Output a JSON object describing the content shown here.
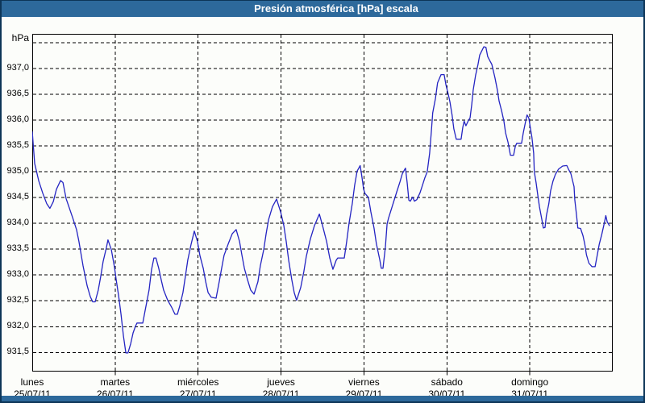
{
  "window": {
    "title": "Presión atmosférica [hPa] escala"
  },
  "colors": {
    "titlebar": "#2d699b",
    "frame_border": "#0d3557",
    "background": "#fcfdfa",
    "grid": "#000000",
    "axis": "#000000",
    "line": "#2424c2",
    "label_text": "#000000",
    "title_text": "#ffffff"
  },
  "chart_data": {
    "type": "line",
    "title": "Presión atmosférica [hPa] escala",
    "unit_label": "hPa",
    "grid": "dashed",
    "legend": "none",
    "y_axis": {
      "min_visible": 931.13,
      "max_visible": 937.67,
      "gridlines": [
        937.5,
        937.0,
        936.5,
        936.0,
        935.5,
        935.0,
        934.5,
        934.0,
        933.5,
        933.0,
        932.5,
        932.0,
        931.5
      ],
      "ticks": [
        {
          "value": 937.0,
          "label": "937,0"
        },
        {
          "value": 936.5,
          "label": "936,5"
        },
        {
          "value": 936.0,
          "label": "936,0"
        },
        {
          "value": 935.5,
          "label": "935,5"
        },
        {
          "value": 935.0,
          "label": "935,0"
        },
        {
          "value": 934.5,
          "label": "934,5"
        },
        {
          "value": 934.0,
          "label": "934,0"
        },
        {
          "value": 933.5,
          "label": "933,5"
        },
        {
          "value": 933.0,
          "label": "933,0"
        },
        {
          "value": 932.5,
          "label": "932,5"
        },
        {
          "value": 932.0,
          "label": "932,0"
        },
        {
          "value": 931.5,
          "label": "931,5"
        }
      ]
    },
    "x_axis": {
      "hours_total": 168,
      "gridline_hours": [
        24,
        48,
        72,
        96,
        120,
        144
      ],
      "days": [
        {
          "name": "lunes",
          "date": "25/07/11"
        },
        {
          "name": "martes",
          "date": "26/07/11"
        },
        {
          "name": "miércoles",
          "date": "27/07/11"
        },
        {
          "name": "jueves",
          "date": "28/07/11"
        },
        {
          "name": "viernes",
          "date": "29/07/11"
        },
        {
          "name": "sábado",
          "date": "30/07/11"
        },
        {
          "name": "domingo",
          "date": "31/07/11"
        }
      ]
    },
    "series": [
      {
        "name": "Presión atmosférica [hPa]",
        "color": "#2424c2",
        "points": [
          [
            0,
            935.78
          ],
          [
            0.7,
            935.16
          ],
          [
            1.9,
            934.82
          ],
          [
            3,
            934.59
          ],
          [
            4.2,
            934.38
          ],
          [
            5.1,
            934.29
          ],
          [
            6.1,
            934.42
          ],
          [
            7,
            934.66
          ],
          [
            8.2,
            934.83
          ],
          [
            8.9,
            934.79
          ],
          [
            9.8,
            934.48
          ],
          [
            11.7,
            934.11
          ],
          [
            12.8,
            933.88
          ],
          [
            13.5,
            933.65
          ],
          [
            14.7,
            933.18
          ],
          [
            15.9,
            932.79
          ],
          [
            16.8,
            932.58
          ],
          [
            17.5,
            932.48
          ],
          [
            18.2,
            932.48
          ],
          [
            19.1,
            932.71
          ],
          [
            19.8,
            932.97
          ],
          [
            20.5,
            933.26
          ],
          [
            21.5,
            933.54
          ],
          [
            21.9,
            933.68
          ],
          [
            22.9,
            933.49
          ],
          [
            23.8,
            933.15
          ],
          [
            24.3,
            932.91
          ],
          [
            25,
            932.6
          ],
          [
            25.7,
            932.24
          ],
          [
            26.4,
            931.82
          ],
          [
            27.1,
            931.49
          ],
          [
            27.7,
            931.49
          ],
          [
            28.5,
            931.67
          ],
          [
            29.2,
            931.88
          ],
          [
            29.9,
            932.01
          ],
          [
            30.3,
            932.07
          ],
          [
            32,
            932.07
          ],
          [
            32.7,
            932.32
          ],
          [
            33.8,
            932.71
          ],
          [
            34.5,
            933.1
          ],
          [
            35.2,
            933.33
          ],
          [
            35.8,
            933.33
          ],
          [
            36.6,
            933.13
          ],
          [
            37.3,
            932.91
          ],
          [
            38,
            932.71
          ],
          [
            39.2,
            932.51
          ],
          [
            40.4,
            932.37
          ],
          [
            41.3,
            932.24
          ],
          [
            42,
            932.24
          ],
          [
            42.7,
            932.4
          ],
          [
            43.6,
            932.66
          ],
          [
            44.3,
            932.97
          ],
          [
            45,
            933.29
          ],
          [
            46,
            933.6
          ],
          [
            46.9,
            933.85
          ],
          [
            47.8,
            933.65
          ],
          [
            48.5,
            933.38
          ],
          [
            49.5,
            933.13
          ],
          [
            50.2,
            932.87
          ],
          [
            50.9,
            932.66
          ],
          [
            51.8,
            932.57
          ],
          [
            53.2,
            932.55
          ],
          [
            54.1,
            932.87
          ],
          [
            54.8,
            933.13
          ],
          [
            55.5,
            933.38
          ],
          [
            56.7,
            933.6
          ],
          [
            57.9,
            933.8
          ],
          [
            59,
            933.88
          ],
          [
            60,
            933.65
          ],
          [
            60.7,
            933.38
          ],
          [
            61.4,
            933.13
          ],
          [
            62.3,
            932.91
          ],
          [
            63.2,
            932.71
          ],
          [
            64.2,
            932.63
          ],
          [
            65.3,
            932.87
          ],
          [
            66,
            933.18
          ],
          [
            67,
            933.49
          ],
          [
            67.7,
            933.8
          ],
          [
            68.4,
            934.07
          ],
          [
            69.5,
            934.32
          ],
          [
            70.7,
            934.47
          ],
          [
            71.9,
            934.22
          ],
          [
            72.8,
            933.96
          ],
          [
            73.5,
            933.65
          ],
          [
            74.2,
            933.29
          ],
          [
            75.1,
            932.91
          ],
          [
            75.8,
            932.66
          ],
          [
            76.5,
            932.51
          ],
          [
            77.7,
            932.76
          ],
          [
            78.6,
            933.07
          ],
          [
            79.3,
            933.36
          ],
          [
            80.5,
            933.7
          ],
          [
            81.7,
            933.96
          ],
          [
            83.1,
            934.18
          ],
          [
            84,
            933.96
          ],
          [
            85.2,
            933.65
          ],
          [
            86.1,
            933.33
          ],
          [
            87,
            933.11
          ],
          [
            88,
            933.29
          ],
          [
            88.4,
            933.33
          ],
          [
            90.3,
            933.33
          ],
          [
            91,
            933.65
          ],
          [
            91.7,
            934.01
          ],
          [
            92.6,
            934.38
          ],
          [
            93.3,
            934.74
          ],
          [
            94,
            935.01
          ],
          [
            94.9,
            935.12
          ],
          [
            95.4,
            934.9
          ],
          [
            95.9,
            934.66
          ],
          [
            96.3,
            934.58
          ],
          [
            97.3,
            934.5
          ],
          [
            98,
            934.22
          ],
          [
            98.9,
            933.91
          ],
          [
            99.6,
            933.6
          ],
          [
            100.6,
            933.29
          ],
          [
            101,
            933.13
          ],
          [
            101.5,
            933.13
          ],
          [
            102.2,
            933.54
          ],
          [
            102.7,
            933.99
          ],
          [
            103.1,
            934.1
          ],
          [
            104.5,
            934.4
          ],
          [
            105.5,
            934.61
          ],
          [
            106.4,
            934.8
          ],
          [
            107.1,
            934.96
          ],
          [
            108,
            935.07
          ],
          [
            108.5,
            934.79
          ],
          [
            109,
            934.45
          ],
          [
            109.4,
            934.43
          ],
          [
            110.1,
            934.51
          ],
          [
            110.6,
            934.43
          ],
          [
            111.3,
            934.46
          ],
          [
            112.2,
            934.59
          ],
          [
            112.7,
            934.69
          ],
          [
            113.6,
            934.88
          ],
          [
            114.3,
            935
          ],
          [
            115,
            935.36
          ],
          [
            115.5,
            935.78
          ],
          [
            115.9,
            936.14
          ],
          [
            116.7,
            936.42
          ],
          [
            117.3,
            936.72
          ],
          [
            118.3,
            936.88
          ],
          [
            119.2,
            936.88
          ],
          [
            119.7,
            936.69
          ],
          [
            120.4,
            936.5
          ],
          [
            120.9,
            936.35
          ],
          [
            121.5,
            936.1
          ],
          [
            122,
            935.83
          ],
          [
            122.7,
            935.63
          ],
          [
            124.1,
            935.63
          ],
          [
            124.6,
            935.86
          ],
          [
            125,
            935.98
          ],
          [
            125.5,
            935.89
          ],
          [
            126.2,
            935.99
          ],
          [
            126.7,
            936.04
          ],
          [
            127.2,
            936.3
          ],
          [
            127.6,
            936.58
          ],
          [
            128.3,
            936.87
          ],
          [
            129,
            937.08
          ],
          [
            129.5,
            937.26
          ],
          [
            130.7,
            937.42
          ],
          [
            131.3,
            937.41
          ],
          [
            131.8,
            937.23
          ],
          [
            132.5,
            937.14
          ],
          [
            133,
            937.08
          ],
          [
            133.9,
            936.82
          ],
          [
            134.6,
            936.58
          ],
          [
            135.1,
            936.37
          ],
          [
            135.8,
            936.19
          ],
          [
            136.5,
            935.98
          ],
          [
            137,
            935.75
          ],
          [
            137.7,
            935.57
          ],
          [
            138.4,
            935.32
          ],
          [
            139.3,
            935.32
          ],
          [
            139.8,
            935.49
          ],
          [
            140.2,
            935.55
          ],
          [
            141.6,
            935.55
          ],
          [
            142.1,
            935.75
          ],
          [
            142.8,
            935.98
          ],
          [
            143.2,
            936.1
          ],
          [
            143.7,
            936.04
          ],
          [
            144.2,
            935.83
          ],
          [
            144.6,
            935.67
          ],
          [
            145.1,
            935.36
          ],
          [
            145.3,
            935
          ],
          [
            145.8,
            934.79
          ],
          [
            146.3,
            934.55
          ],
          [
            146.8,
            934.32
          ],
          [
            147.5,
            934.07
          ],
          [
            147.9,
            933.91
          ],
          [
            148.4,
            933.92
          ],
          [
            148.8,
            934.15
          ],
          [
            149.5,
            934.38
          ],
          [
            150,
            934.63
          ],
          [
            150.7,
            934.82
          ],
          [
            151.4,
            934.95
          ],
          [
            152.3,
            935.05
          ],
          [
            153.5,
            935.11
          ],
          [
            154.7,
            935.12
          ],
          [
            155.2,
            935.05
          ],
          [
            155.9,
            934.96
          ],
          [
            156.8,
            934.71
          ],
          [
            157,
            934.46
          ],
          [
            157.5,
            934.17
          ],
          [
            157.9,
            933.91
          ],
          [
            158.7,
            933.9
          ],
          [
            159.4,
            933.76
          ],
          [
            159.9,
            933.6
          ],
          [
            160.4,
            933.39
          ],
          [
            161.1,
            933.23
          ],
          [
            162,
            933.16
          ],
          [
            162.9,
            933.16
          ],
          [
            163.6,
            933.41
          ],
          [
            164.1,
            933.6
          ],
          [
            164.8,
            933.78
          ],
          [
            165.5,
            933.99
          ],
          [
            166,
            934.15
          ],
          [
            166.4,
            934.03
          ],
          [
            167.1,
            933.95
          ]
        ]
      }
    ]
  }
}
